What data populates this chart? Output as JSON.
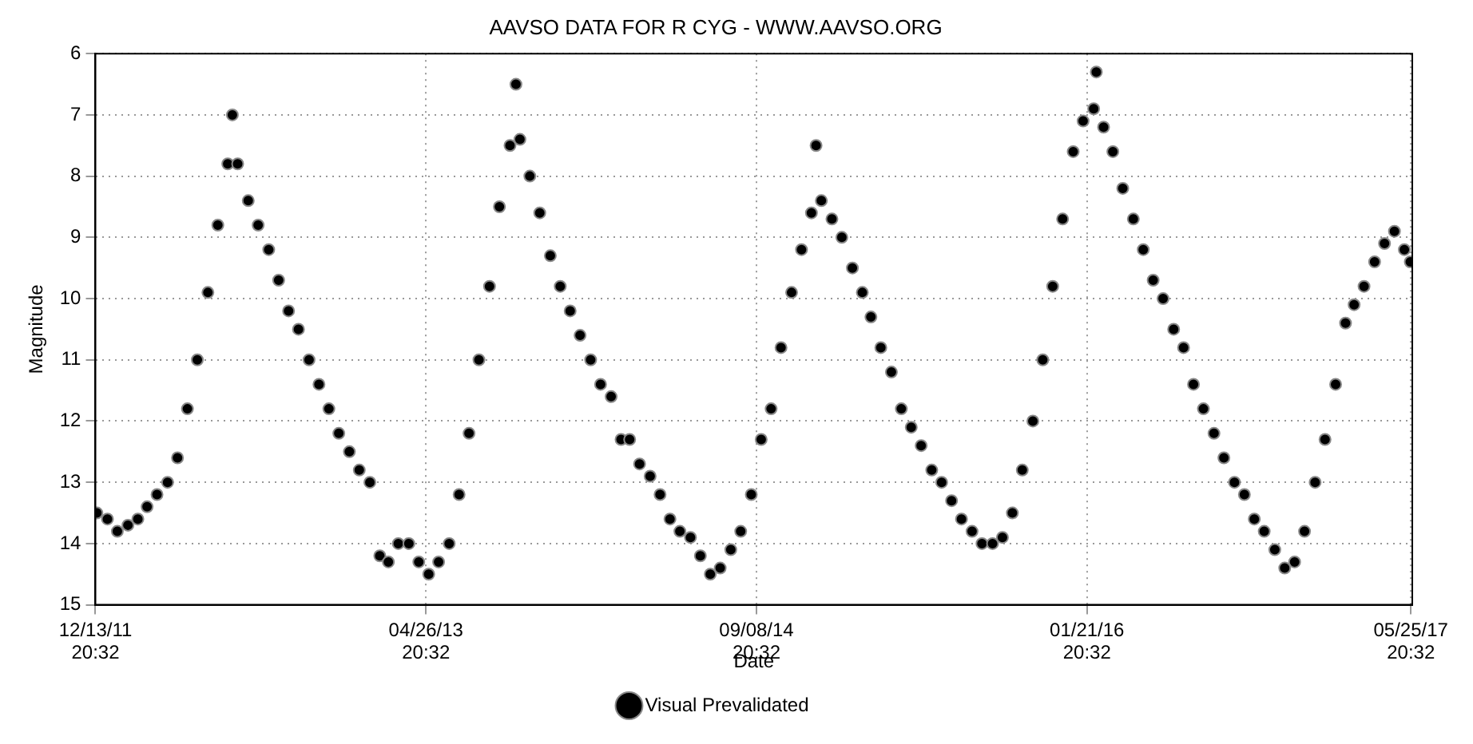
{
  "chart_data": {
    "type": "scatter",
    "title": "AAVSO DATA FOR R CYG - WWW.AAVSO.ORG",
    "xlabel": "Date",
    "ylabel": "Magnitude",
    "xlim": [
      "2011-12-13T20:32",
      "2017-05-28"
    ],
    "xticks": [
      {
        "value": "2011-12-13T20:32",
        "label": "12/13/11 20:32"
      },
      {
        "value": "2013-04-26T20:32",
        "label": "04/26/13 20:32"
      },
      {
        "value": "2014-09-08T20:32",
        "label": "09/08/14 20:32"
      },
      {
        "value": "2016-01-21T20:32",
        "label": "01/21/16 20:32"
      },
      {
        "value": "2017-05-25T20:32",
        "label": "05/25/17 20:32"
      }
    ],
    "ylim": [
      15,
      6
    ],
    "yticks": [
      6,
      7,
      8,
      9,
      10,
      11,
      12,
      13,
      14,
      15
    ],
    "grid": true,
    "legend": "bottom",
    "marker": "circle",
    "series": [
      {
        "name": "Visual Prevalidated",
        "color": "#000000",
        "x": [
          "2011-12-16",
          "2012-01-01",
          "2012-01-16",
          "2012-02-01",
          "2012-02-16",
          "2012-03-01",
          "2012-03-16",
          "2012-04-01",
          "2012-04-16",
          "2012-05-01",
          "2012-05-16",
          "2012-06-01",
          "2012-06-16",
          "2012-07-01",
          "2012-07-08",
          "2012-07-16",
          "2012-08-01",
          "2012-08-16",
          "2012-09-01",
          "2012-09-16",
          "2012-10-01",
          "2012-10-16",
          "2012-11-01",
          "2012-11-16",
          "2012-12-01",
          "2012-12-16",
          "2013-01-01",
          "2013-01-16",
          "2013-02-01",
          "2013-02-16",
          "2013-03-01",
          "2013-03-16",
          "2013-04-01",
          "2013-04-16",
          "2013-05-01",
          "2013-05-16",
          "2013-06-01",
          "2013-06-16",
          "2013-07-01",
          "2013-07-16",
          "2013-08-01",
          "2013-08-16",
          "2013-09-01",
          "2013-09-10",
          "2013-09-16",
          "2013-10-01",
          "2013-10-16",
          "2013-11-01",
          "2013-11-16",
          "2013-12-01",
          "2013-12-16",
          "2014-01-01",
          "2014-01-16",
          "2014-02-01",
          "2014-02-16",
          "2014-03-01",
          "2014-03-16",
          "2014-04-01",
          "2014-04-16",
          "2014-05-01",
          "2014-05-16",
          "2014-06-01",
          "2014-06-16",
          "2014-07-01",
          "2014-07-16",
          "2014-08-01",
          "2014-08-16",
          "2014-09-01",
          "2014-09-16",
          "2014-10-01",
          "2014-10-16",
          "2014-11-01",
          "2014-11-16",
          "2014-12-01",
          "2014-12-08",
          "2014-12-16",
          "2015-01-01",
          "2015-01-16",
          "2015-02-01",
          "2015-02-16",
          "2015-03-01",
          "2015-03-16",
          "2015-04-01",
          "2015-04-16",
          "2015-05-01",
          "2015-05-16",
          "2015-06-01",
          "2015-06-16",
          "2015-07-01",
          "2015-07-16",
          "2015-08-01",
          "2015-08-16",
          "2015-09-01",
          "2015-09-16",
          "2015-10-01",
          "2015-10-16",
          "2015-11-01",
          "2015-11-16",
          "2015-12-01",
          "2015-12-16",
          "2016-01-01",
          "2016-01-16",
          "2016-02-01",
          "2016-02-05",
          "2016-02-16",
          "2016-03-01",
          "2016-03-16",
          "2016-04-01",
          "2016-04-16",
          "2016-05-01",
          "2016-05-16",
          "2016-06-01",
          "2016-06-16",
          "2016-07-01",
          "2016-07-16",
          "2016-08-01",
          "2016-08-16",
          "2016-09-01",
          "2016-09-16",
          "2016-10-01",
          "2016-10-16",
          "2016-11-01",
          "2016-11-16",
          "2016-12-01",
          "2016-12-16",
          "2017-01-01",
          "2017-01-16",
          "2017-02-01",
          "2017-02-16",
          "2017-03-01",
          "2017-03-16",
          "2017-04-01",
          "2017-04-16",
          "2017-05-01",
          "2017-05-16",
          "2017-05-25"
        ],
        "values": [
          13.5,
          13.6,
          13.8,
          13.7,
          13.6,
          13.4,
          13.2,
          13.0,
          12.6,
          11.8,
          11.0,
          9.9,
          8.8,
          7.8,
          7.0,
          7.8,
          8.4,
          8.8,
          9.2,
          9.7,
          10.2,
          10.5,
          11.0,
          11.4,
          11.8,
          12.2,
          12.5,
          12.8,
          13.0,
          14.2,
          14.3,
          14.0,
          14.0,
          14.3,
          14.5,
          14.3,
          14.0,
          13.2,
          12.2,
          11.0,
          9.8,
          8.5,
          7.5,
          6.5,
          7.4,
          8.0,
          8.6,
          9.3,
          9.8,
          10.2,
          10.6,
          11.0,
          11.4,
          11.6,
          12.3,
          12.3,
          12.7,
          12.9,
          13.2,
          13.6,
          13.8,
          13.9,
          14.2,
          14.5,
          14.4,
          14.1,
          13.8,
          13.2,
          12.3,
          11.8,
          10.8,
          9.9,
          9.2,
          8.6,
          7.5,
          8.4,
          8.7,
          9.0,
          9.5,
          9.9,
          10.3,
          10.8,
          11.2,
          11.8,
          12.1,
          12.4,
          12.8,
          13.0,
          13.3,
          13.6,
          13.8,
          14.0,
          14.0,
          13.9,
          13.5,
          12.8,
          12.0,
          11.0,
          9.8,
          8.7,
          7.6,
          7.1,
          6.9,
          6.3,
          7.2,
          7.6,
          8.2,
          8.7,
          9.2,
          9.7,
          10.0,
          10.5,
          10.8,
          11.4,
          11.8,
          12.2,
          12.6,
          13.0,
          13.2,
          13.6,
          13.8,
          14.1,
          14.4,
          14.3,
          13.8,
          13.0,
          12.3,
          11.4,
          10.4,
          10.1,
          9.8,
          9.4,
          9.1,
          8.9,
          9.2,
          9.4
        ]
      }
    ]
  }
}
